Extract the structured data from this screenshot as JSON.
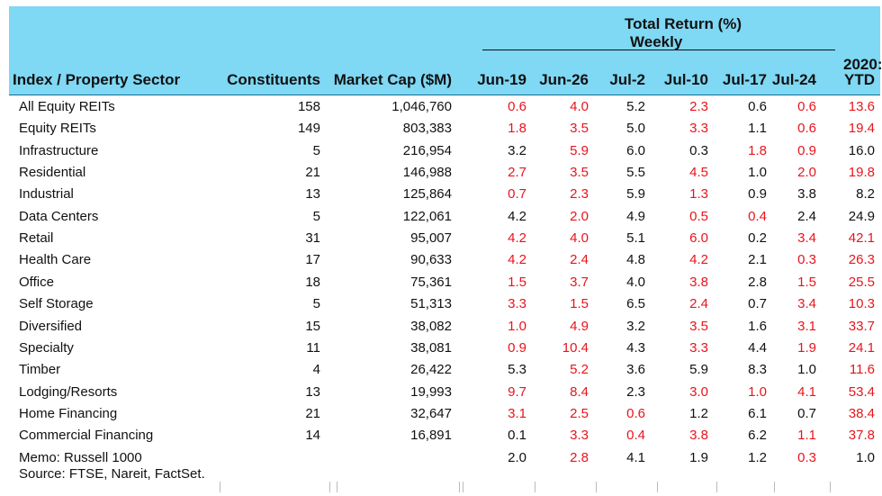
{
  "header": {
    "group_title": "Total Return (%)",
    "group_subtitle": "Weekly",
    "ytd_top": "2020:",
    "columns": [
      "Index / Property Sector",
      "Constituents",
      "Market Cap ($M)",
      "Jun-19",
      "Jun-26",
      "Jul-2",
      "Jul-10",
      "Jul-17",
      "Jul-24",
      "YTD"
    ]
  },
  "colors": {
    "header_bg": "#7fd8f4",
    "positive_text": "#111111",
    "highlight_text": "#e8141c"
  },
  "rows": [
    {
      "name": "All Equity REITs",
      "constituents": "158",
      "market_cap": "1,046,760",
      "returns": [
        "0.6",
        "4.0",
        "5.2",
        "2.3",
        "0.6",
        "0.6",
        "13.6"
      ],
      "red": [
        true,
        true,
        false,
        true,
        false,
        true,
        true
      ]
    },
    {
      "name": "Equity REITs",
      "constituents": "149",
      "market_cap": "803,383",
      "returns": [
        "1.8",
        "3.5",
        "5.0",
        "3.3",
        "1.1",
        "0.6",
        "19.4"
      ],
      "red": [
        true,
        true,
        false,
        true,
        false,
        true,
        true
      ]
    },
    {
      "name": "Infrastructure",
      "constituents": "5",
      "market_cap": "216,954",
      "returns": [
        "3.2",
        "5.9",
        "6.0",
        "0.3",
        "1.8",
        "0.9",
        "16.0"
      ],
      "red": [
        false,
        true,
        false,
        false,
        true,
        true,
        false
      ]
    },
    {
      "name": "Residential",
      "constituents": "21",
      "market_cap": "146,988",
      "returns": [
        "2.7",
        "3.5",
        "5.5",
        "4.5",
        "1.0",
        "2.0",
        "19.8"
      ],
      "red": [
        true,
        true,
        false,
        true,
        false,
        true,
        true
      ]
    },
    {
      "name": "Industrial",
      "constituents": "13",
      "market_cap": "125,864",
      "returns": [
        "0.7",
        "2.3",
        "5.9",
        "1.3",
        "0.9",
        "3.8",
        "8.2"
      ],
      "red": [
        true,
        true,
        false,
        true,
        false,
        false,
        false
      ]
    },
    {
      "name": "Data Centers",
      "constituents": "5",
      "market_cap": "122,061",
      "returns": [
        "4.2",
        "2.0",
        "4.9",
        "0.5",
        "0.4",
        "2.4",
        "24.9"
      ],
      "red": [
        false,
        true,
        false,
        true,
        true,
        false,
        false
      ]
    },
    {
      "name": "Retail",
      "constituents": "31",
      "market_cap": "95,007",
      "returns": [
        "4.2",
        "4.0",
        "5.1",
        "6.0",
        "0.2",
        "3.4",
        "42.1"
      ],
      "red": [
        true,
        true,
        false,
        true,
        false,
        true,
        true
      ]
    },
    {
      "name": "Health Care",
      "constituents": "17",
      "market_cap": "90,633",
      "returns": [
        "4.2",
        "2.4",
        "4.8",
        "4.2",
        "2.1",
        "0.3",
        "26.3"
      ],
      "red": [
        true,
        true,
        false,
        true,
        false,
        true,
        true
      ]
    },
    {
      "name": "Office",
      "constituents": "18",
      "market_cap": "75,361",
      "returns": [
        "1.5",
        "3.7",
        "4.0",
        "3.8",
        "2.8",
        "1.5",
        "25.5"
      ],
      "red": [
        true,
        true,
        false,
        true,
        false,
        true,
        true
      ]
    },
    {
      "name": "Self Storage",
      "constituents": "5",
      "market_cap": "51,313",
      "returns": [
        "3.3",
        "1.5",
        "6.5",
        "2.4",
        "0.7",
        "3.4",
        "10.3"
      ],
      "red": [
        true,
        true,
        false,
        true,
        false,
        true,
        true
      ]
    },
    {
      "name": "Diversified",
      "constituents": "15",
      "market_cap": "38,082",
      "returns": [
        "1.0",
        "4.9",
        "3.2",
        "3.5",
        "1.6",
        "3.1",
        "33.7"
      ],
      "red": [
        true,
        true,
        false,
        true,
        false,
        true,
        true
      ]
    },
    {
      "name": "Specialty",
      "constituents": "11",
      "market_cap": "38,081",
      "returns": [
        "0.9",
        "10.4",
        "4.3",
        "3.3",
        "4.4",
        "1.9",
        "24.1"
      ],
      "red": [
        true,
        true,
        false,
        true,
        false,
        true,
        true
      ]
    },
    {
      "name": "Timber",
      "constituents": "4",
      "market_cap": "26,422",
      "returns": [
        "5.3",
        "5.2",
        "3.6",
        "5.9",
        "8.3",
        "1.0",
        "11.6"
      ],
      "red": [
        false,
        true,
        false,
        false,
        false,
        false,
        true
      ]
    },
    {
      "name": "Lodging/Resorts",
      "constituents": "13",
      "market_cap": "19,993",
      "returns": [
        "9.7",
        "8.4",
        "2.3",
        "3.0",
        "1.0",
        "4.1",
        "53.4"
      ],
      "red": [
        true,
        true,
        false,
        true,
        true,
        true,
        true
      ]
    },
    {
      "name": "Home Financing",
      "constituents": "21",
      "market_cap": "32,647",
      "returns": [
        "3.1",
        "2.5",
        "0.6",
        "1.2",
        "6.1",
        "0.7",
        "38.4"
      ],
      "red": [
        true,
        true,
        true,
        false,
        false,
        false,
        true
      ]
    },
    {
      "name": "Commercial Financing",
      "constituents": "14",
      "market_cap": "16,891",
      "returns": [
        "0.1",
        "3.3",
        "0.4",
        "3.8",
        "6.2",
        "1.1",
        "37.8"
      ],
      "red": [
        false,
        true,
        true,
        true,
        false,
        true,
        true
      ]
    },
    {
      "name": "Memo: Russell 1000",
      "constituents": "",
      "market_cap": "",
      "returns": [
        "2.0",
        "2.8",
        "4.1",
        "1.9",
        "1.2",
        "0.3",
        "1.0"
      ],
      "red": [
        false,
        true,
        false,
        false,
        false,
        true,
        false
      ]
    }
  ],
  "source": "Source: FTSE, Nareit, FactSet."
}
